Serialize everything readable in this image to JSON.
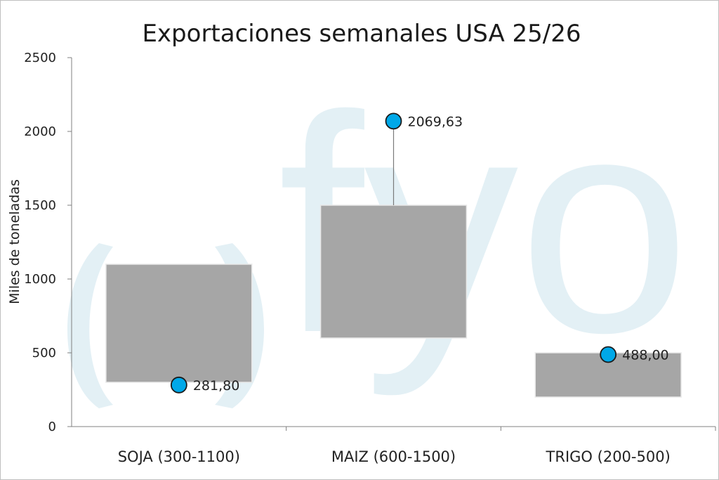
{
  "watermark": {
    "text": "fyo",
    "color": "#e3f0f5"
  },
  "chart_data": {
    "type": "bar",
    "title": "Exportaciones semanales USA 25/26",
    "ylabel": "Miles de toneladas",
    "xlabel": "",
    "ylim": [
      0,
      2500
    ],
    "yticks": [
      0,
      500,
      1000,
      1500,
      2000,
      2500
    ],
    "grid": false,
    "categories": [
      "SOJA (300-1100)",
      "MAIZ (600-1500)",
      "TRIGO (200-500)"
    ],
    "ranges": [
      {
        "low": 300,
        "high": 1100
      },
      {
        "low": 600,
        "high": 1500
      },
      {
        "low": 200,
        "high": 500
      }
    ],
    "values": [
      281.8,
      2069.63,
      488.0
    ],
    "value_labels": [
      "281,80",
      "2069,63",
      "488,00"
    ],
    "range_color": "#a6a6a6",
    "marker_color": "#00a8e8"
  }
}
